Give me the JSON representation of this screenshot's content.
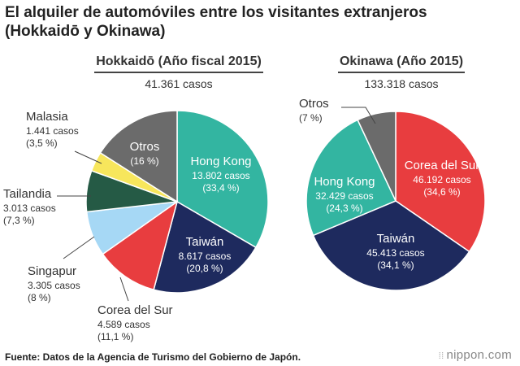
{
  "title_line1": "El alquiler de automóviles entre los visitantes extranjeros",
  "title_line2": "(Hokkaidō y Okinawa)",
  "source": "Fuente: Datos de la Agencia de Turismo del Gobierno de Japón.",
  "brand": "nippon.com",
  "colors": {
    "hong_kong": "#33b5a1",
    "taiwan": "#1e2a5e",
    "korea": "#e83d3f",
    "singapore": "#a6d8f5",
    "thailand": "#255a45",
    "malaysia": "#f7e65c",
    "others": "#6b6b6b"
  },
  "chart_data": [
    {
      "type": "pie",
      "title": "Hokkaidō (Año fiscal 2015)",
      "subtitle": "41.361 casos",
      "slices": [
        {
          "label": "Hong Kong",
          "count": "13.802 casos",
          "pct_label": "(33,4 %)",
          "value": 33.4,
          "color": "#33b5a1"
        },
        {
          "label": "Taiwán",
          "count": "8.617 casos",
          "pct_label": "(20,8 %)",
          "value": 20.8,
          "color": "#1e2a5e"
        },
        {
          "label": "Corea del Sur",
          "count": "4.589 casos",
          "pct_label": "(11,1 %)",
          "value": 11.1,
          "color": "#e83d3f"
        },
        {
          "label": "Singapur",
          "count": "3.305 casos",
          "pct_label": "(8 %)",
          "value": 8,
          "color": "#a6d8f5"
        },
        {
          "label": "Tailandia",
          "count": "3.013 casos",
          "pct_label": "(7,3 %)",
          "value": 7.3,
          "color": "#255a45"
        },
        {
          "label": "Malasia",
          "count": "1.441 casos",
          "pct_label": "(3,5 %)",
          "value": 3.5,
          "color": "#f7e65c"
        },
        {
          "label": "Otros",
          "count": "",
          "pct_label": "(16 %)",
          "value": 16,
          "color": "#6b6b6b"
        }
      ]
    },
    {
      "type": "pie",
      "title": "Okinawa (Año 2015)",
      "subtitle": "133.318 casos",
      "slices": [
        {
          "label": "Corea del Sur",
          "count": "46.192 casos",
          "pct_label": "(34,6 %)",
          "value": 34.6,
          "color": "#e83d3f"
        },
        {
          "label": "Taiwán",
          "count": "45.413 casos",
          "pct_label": "(34,1 %)",
          "value": 34.1,
          "color": "#1e2a5e"
        },
        {
          "label": "Hong Kong",
          "count": "32.429 casos",
          "pct_label": "(24,3 %)",
          "value": 24.3,
          "color": "#33b5a1"
        },
        {
          "label": "Otros",
          "count": "",
          "pct_label": "(7 %)",
          "value": 7,
          "color": "#6b6b6b"
        }
      ]
    }
  ]
}
